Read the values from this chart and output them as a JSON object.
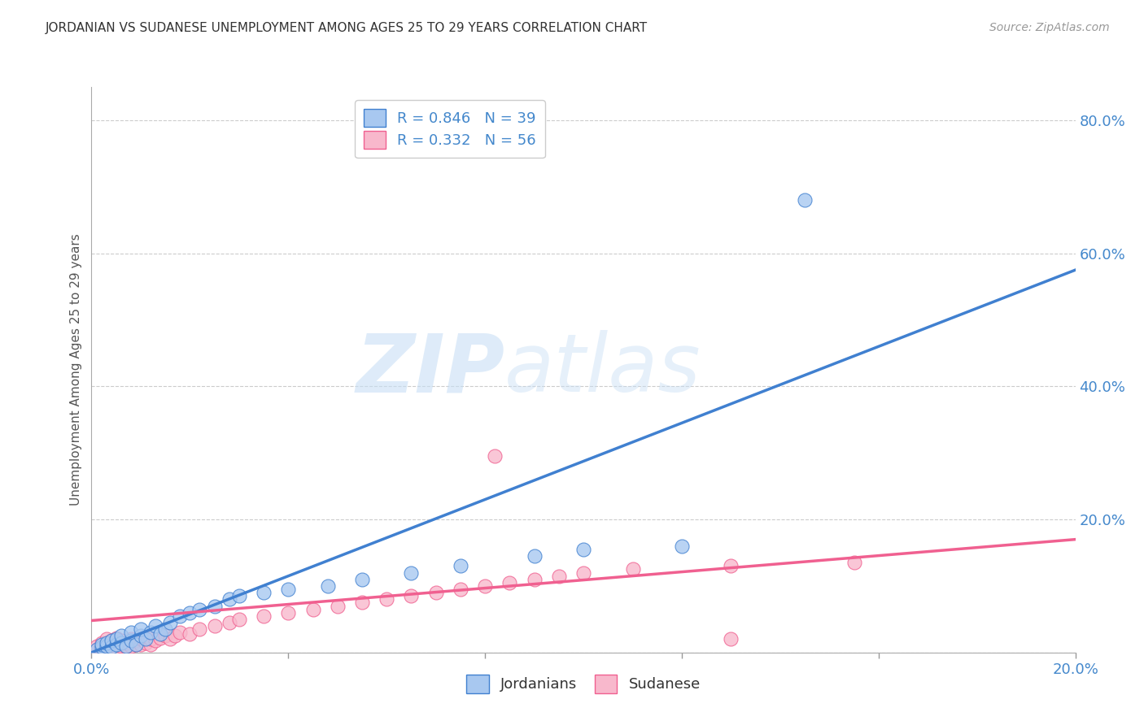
{
  "title": "JORDANIAN VS SUDANESE UNEMPLOYMENT AMONG AGES 25 TO 29 YEARS CORRELATION CHART",
  "source_text": "Source: ZipAtlas.com",
  "ylabel": "Unemployment Among Ages 25 to 29 years",
  "xlim": [
    0,
    0.2
  ],
  "ylim": [
    0,
    0.85
  ],
  "x_ticks": [
    0.0,
    0.04,
    0.08,
    0.12,
    0.16,
    0.2
  ],
  "y_ticks_right": [
    0.0,
    0.2,
    0.4,
    0.6,
    0.8
  ],
  "jordanian_color": "#A8C8F0",
  "sudanese_color": "#F8B8CC",
  "jordanian_line_color": "#4080D0",
  "sudanese_line_color": "#F06090",
  "legend_r1": "R = 0.846",
  "legend_n1": "N = 39",
  "legend_r2": "R = 0.332",
  "legend_n2": "N = 56",
  "watermark_zip": "ZIP",
  "watermark_atlas": "atlas",
  "background_color": "#FFFFFF",
  "grid_color": "#CCCCCC",
  "title_color": "#333333",
  "axis_label_color": "#555555",
  "tick_label_color_blue": "#4488CC",
  "legend_label1": "Jordanians",
  "legend_label2": "Sudanese",
  "jordanian_scatter_x": [
    0.001,
    0.002,
    0.002,
    0.003,
    0.003,
    0.004,
    0.004,
    0.005,
    0.005,
    0.006,
    0.006,
    0.007,
    0.008,
    0.008,
    0.009,
    0.01,
    0.01,
    0.011,
    0.012,
    0.013,
    0.014,
    0.015,
    0.016,
    0.018,
    0.02,
    0.022,
    0.025,
    0.028,
    0.03,
    0.035,
    0.04,
    0.048,
    0.055,
    0.065,
    0.075,
    0.09,
    0.1,
    0.12,
    0.145
  ],
  "jordanian_scatter_y": [
    0.005,
    0.008,
    0.012,
    0.01,
    0.015,
    0.008,
    0.018,
    0.012,
    0.02,
    0.015,
    0.025,
    0.01,
    0.018,
    0.03,
    0.012,
    0.025,
    0.035,
    0.02,
    0.03,
    0.04,
    0.028,
    0.035,
    0.045,
    0.055,
    0.06,
    0.065,
    0.07,
    0.08,
    0.085,
    0.09,
    0.095,
    0.1,
    0.11,
    0.12,
    0.13,
    0.145,
    0.155,
    0.16,
    0.68
  ],
  "sudanese_scatter_x": [
    0.001,
    0.001,
    0.002,
    0.002,
    0.003,
    0.003,
    0.003,
    0.004,
    0.004,
    0.005,
    0.005,
    0.005,
    0.006,
    0.006,
    0.007,
    0.007,
    0.008,
    0.008,
    0.009,
    0.009,
    0.01,
    0.01,
    0.011,
    0.011,
    0.012,
    0.012,
    0.013,
    0.014,
    0.015,
    0.016,
    0.017,
    0.018,
    0.02,
    0.022,
    0.025,
    0.028,
    0.03,
    0.035,
    0.04,
    0.045,
    0.05,
    0.055,
    0.06,
    0.065,
    0.07,
    0.075,
    0.08,
    0.085,
    0.09,
    0.095,
    0.1,
    0.11,
    0.13,
    0.155,
    0.082,
    0.13
  ],
  "sudanese_scatter_y": [
    0.005,
    0.01,
    0.008,
    0.015,
    0.01,
    0.015,
    0.02,
    0.012,
    0.018,
    0.008,
    0.015,
    0.022,
    0.01,
    0.018,
    0.008,
    0.015,
    0.01,
    0.02,
    0.012,
    0.018,
    0.012,
    0.02,
    0.015,
    0.022,
    0.012,
    0.02,
    0.018,
    0.022,
    0.025,
    0.02,
    0.025,
    0.03,
    0.028,
    0.035,
    0.04,
    0.045,
    0.05,
    0.055,
    0.06,
    0.065,
    0.07,
    0.075,
    0.08,
    0.085,
    0.09,
    0.095,
    0.1,
    0.105,
    0.11,
    0.115,
    0.12,
    0.125,
    0.13,
    0.135,
    0.295,
    0.02
  ],
  "jordanian_line_x": [
    0.0,
    0.2
  ],
  "jordanian_line_y": [
    0.0,
    0.575
  ],
  "sudanese_line_x": [
    0.0,
    0.2
  ],
  "sudanese_line_y": [
    0.048,
    0.17
  ]
}
